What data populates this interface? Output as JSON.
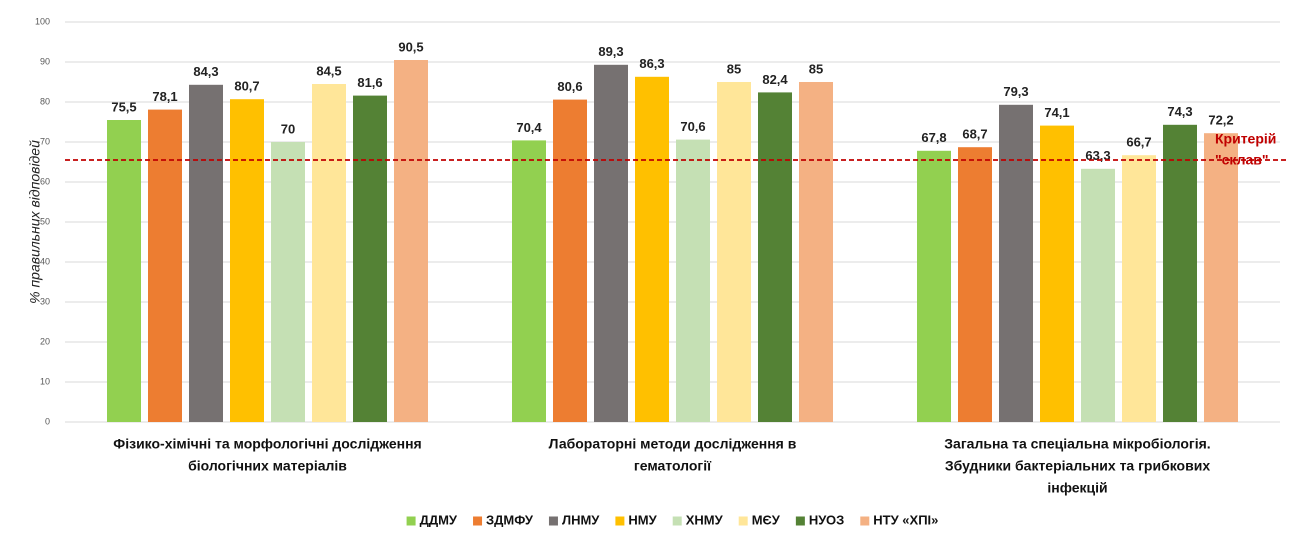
{
  "chart_data": {
    "type": "bar",
    "y_label": "% правильних відповідей",
    "categories": [
      [
        "Фізико-хімічні та морфологічні дослідження",
        "біологічних матеріалів"
      ],
      [
        "Лабораторні методи дослідження в",
        "гематології"
      ],
      [
        "Загальна та спеціальна мікробіологія.",
        "Збудники бактеріальних та грибкових",
        "інфекцій"
      ]
    ],
    "series": [
      {
        "name": "ДДМУ",
        "color": "#92d050",
        "values": [
          75.5,
          70.4,
          67.8
        ],
        "value_labels": [
          "75,5",
          "70,4",
          "67,8"
        ]
      },
      {
        "name": "ЗДМФУ",
        "color": "#ed7d31",
        "values": [
          78.1,
          80.6,
          68.7
        ],
        "value_labels": [
          "78,1",
          "80,6",
          "68,7"
        ]
      },
      {
        "name": "ЛНМУ",
        "color": "#767171",
        "values": [
          84.3,
          89.3,
          79.3
        ],
        "value_labels": [
          "84,3",
          "89,3",
          "79,3"
        ]
      },
      {
        "name": "НМУ",
        "color": "#ffc000",
        "values": [
          80.7,
          86.3,
          74.1
        ],
        "value_labels": [
          "80,7",
          "86,3",
          "74,1"
        ]
      },
      {
        "name": "ХНМУ",
        "color": "#c5e0b4",
        "values": [
          70,
          70.6,
          63.3
        ],
        "value_labels": [
          "70",
          "70,6",
          "63,3"
        ]
      },
      {
        "name": "МЄУ",
        "color": "#ffe699",
        "values": [
          84.5,
          85,
          66.7
        ],
        "value_labels": [
          "84,5",
          "85",
          "66,7"
        ]
      },
      {
        "name": "НУОЗ",
        "color": "#548235",
        "values": [
          81.6,
          82.4,
          74.3
        ],
        "value_labels": [
          "81,6",
          "82,4",
          "74,3"
        ]
      },
      {
        "name": "НТУ «ХПІ»",
        "color": "#f4b183",
        "values": [
          90.5,
          85,
          72.2
        ],
        "value_labels": [
          "90,5",
          "85",
          "72,2"
        ]
      }
    ],
    "ylim": [
      0,
      100
    ],
    "yticks": [
      0,
      10,
      20,
      30,
      40,
      50,
      60,
      70,
      80,
      90,
      100
    ],
    "grid": true,
    "legend": "bottom",
    "reference_line": {
      "value": 65.5,
      "color": "#c00000",
      "text": [
        "Критерій",
        "\"склав\""
      ]
    }
  }
}
